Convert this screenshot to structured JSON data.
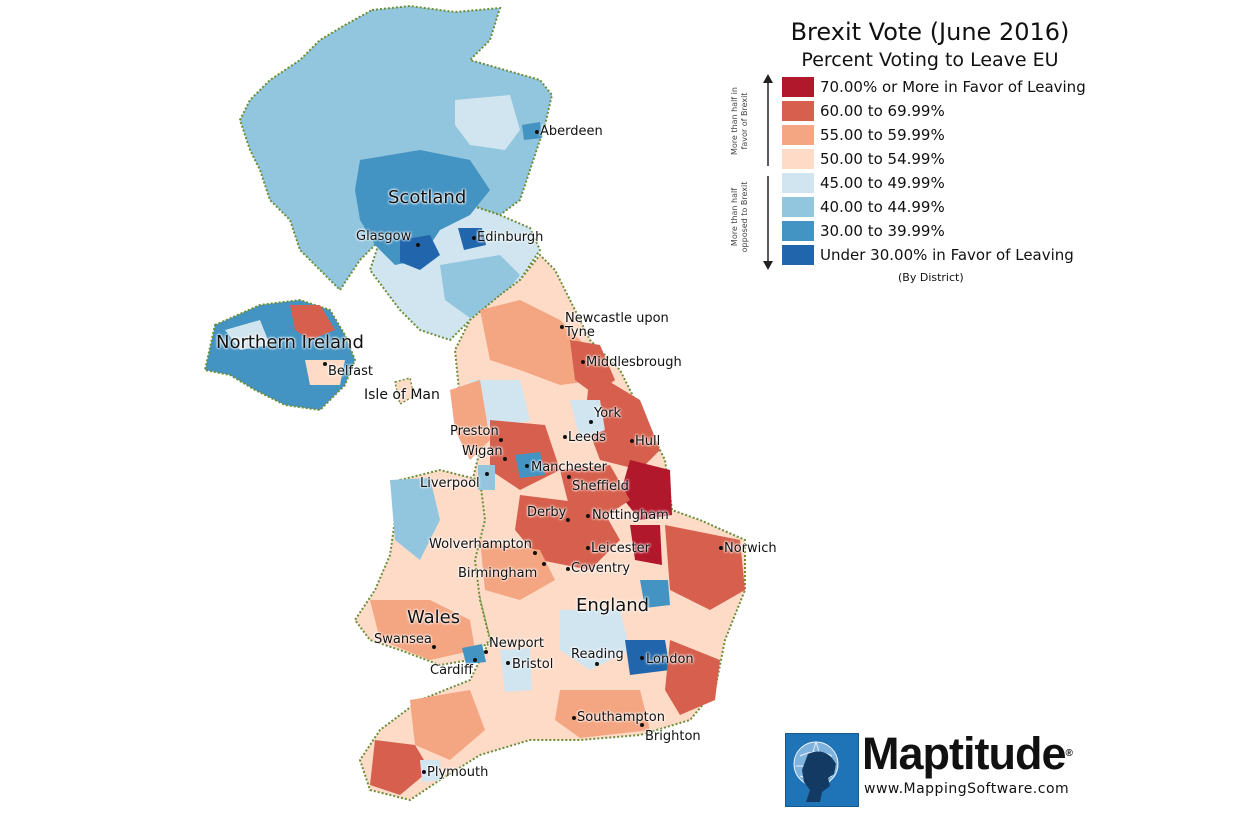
{
  "legend": {
    "title": "Brexit Vote (June 2016)",
    "subtitle": "Percent Voting to Leave EU",
    "side_top": "More than half in favor of Brexit",
    "side_bottom": "More than half opposed to Brexit",
    "note": "(By District)",
    "items": [
      {
        "label": "70.00% or More in Favor of Leaving",
        "color": "#b2182b"
      },
      {
        "label": "60.00 to 69.99%",
        "color": "#d6604d"
      },
      {
        "label": "55.00 to 59.99%",
        "color": "#f4a582"
      },
      {
        "label": "50.00 to 54.99%",
        "color": "#fddbc7"
      },
      {
        "label": "45.00 to 49.99%",
        "color": "#d1e5f0"
      },
      {
        "label": "40.00 to 44.99%",
        "color": "#92c5de"
      },
      {
        "label": "30.00 to 39.99%",
        "color": "#4393c3"
      },
      {
        "label": "Under 30.00% in Favor of Leaving",
        "color": "#2166ac"
      }
    ]
  },
  "regions": {
    "scotland": "Scotland",
    "northern_ireland": "Northern Ireland",
    "wales": "Wales",
    "england": "England",
    "isle_of_man": "Isle of Man"
  },
  "cities": {
    "aberdeen": "Aberdeen",
    "glasgow": "Glasgow",
    "edinburgh": "Edinburgh",
    "newcastle": "Newcastle upon",
    "newcastle2": "Tyne",
    "middlesbrough": "Middlesbrough",
    "belfast": "Belfast",
    "york": "York",
    "preston": "Preston",
    "leeds": "Leeds",
    "hull": "Hull",
    "wigan": "Wigan",
    "manchester": "Manchester",
    "liverpool": "Liverpool",
    "sheffield": "Sheffield",
    "derby": "Derby",
    "nottingham": "Nottingham",
    "norwich": "Norwich",
    "wolverhampton": "Wolverhampton",
    "leicester": "Leicester",
    "birmingham": "Birmingham",
    "coventry": "Coventry",
    "swansea": "Swansea",
    "newport": "Newport",
    "cardiff": "Cardiff",
    "bristol": "Bristol",
    "reading": "Reading",
    "london": "London",
    "southampton": "Southampton",
    "brighton": "Brighton",
    "plymouth": "Plymouth"
  },
  "brand": {
    "name": "Maptitude",
    "reg": "®",
    "url": "www.MappingSoftware.com"
  }
}
